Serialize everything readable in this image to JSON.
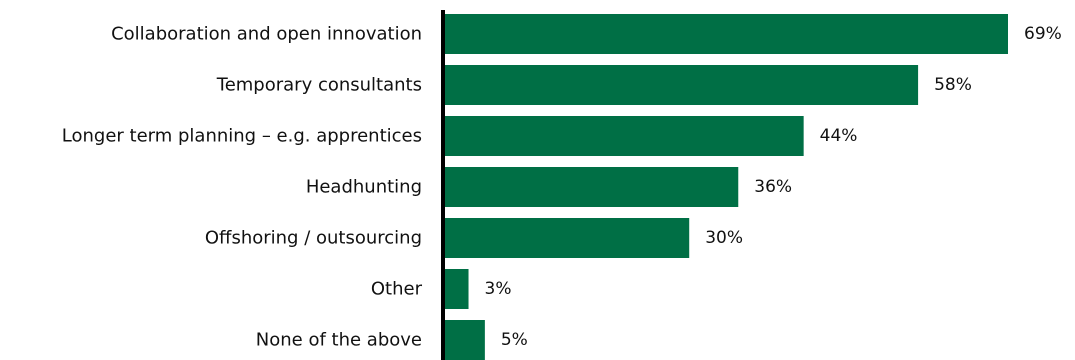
{
  "chart_data": {
    "type": "bar",
    "orientation": "horizontal",
    "categories": [
      "Collaboration and open innovation",
      "Temporary consultants",
      "Longer term planning – e.g. apprentices",
      "Headhunting",
      "Offshoring / outsourcing",
      "Other",
      "None of the above"
    ],
    "values": [
      69,
      58,
      44,
      36,
      30,
      3,
      5
    ],
    "value_labels": [
      "69%",
      "58%",
      "44%",
      "36%",
      "30%",
      "3%",
      "5%"
    ],
    "unit": "%",
    "xlim": [
      0,
      69
    ],
    "grid": false,
    "legend": "none",
    "bar_color": "#006f45",
    "axis_color": "#000000"
  }
}
